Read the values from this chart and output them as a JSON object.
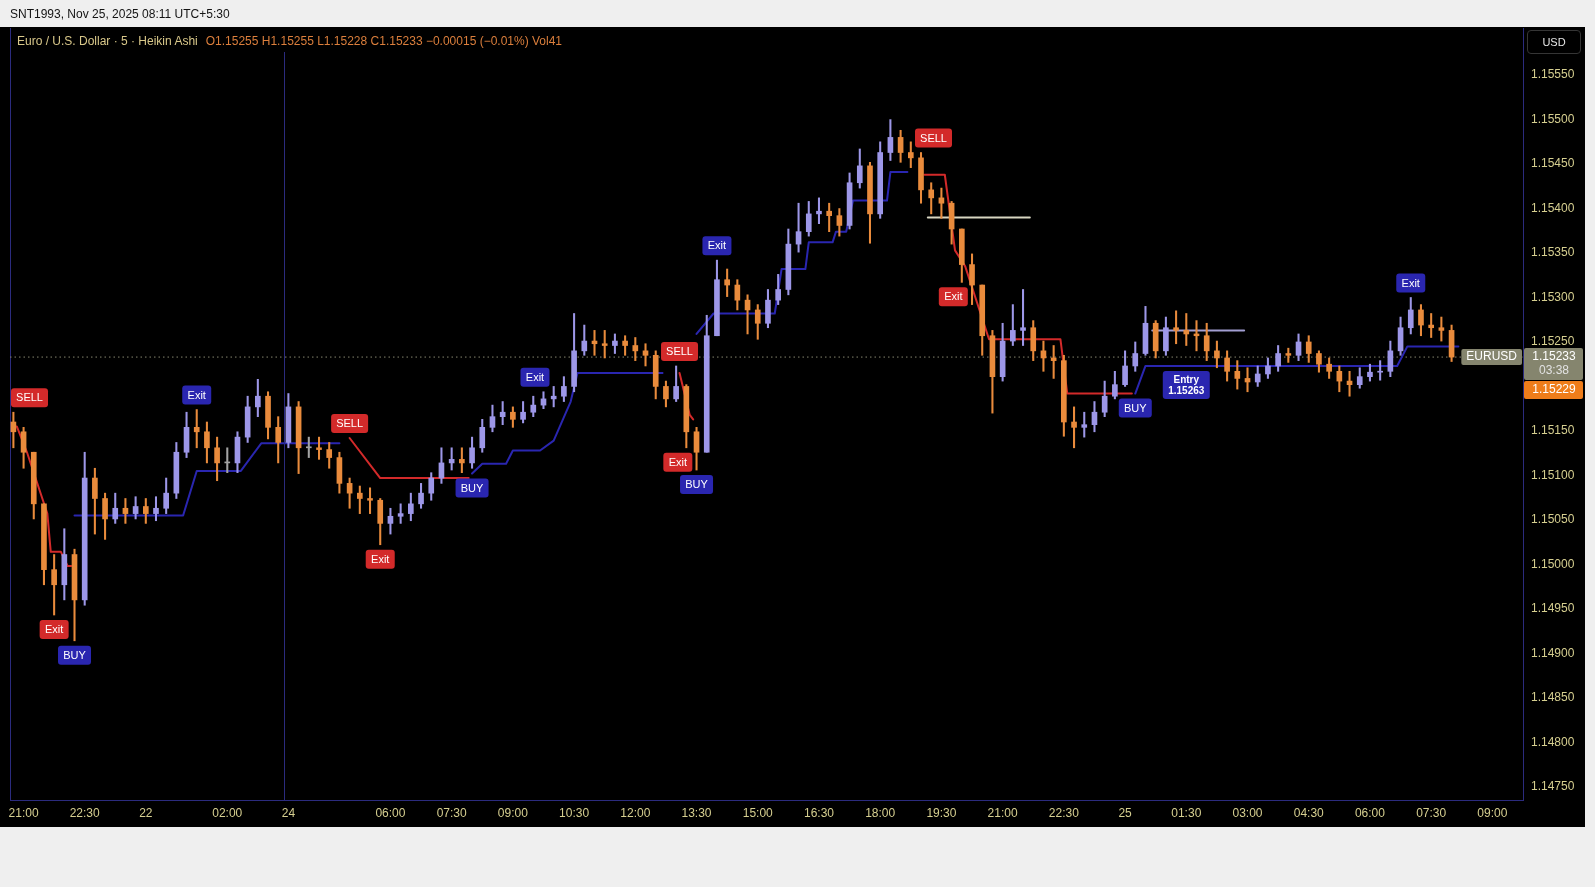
{
  "chart_data": [
    {
      "type": "candlestick",
      "title": "Euro / U.S. Dollar · 5 · Heikin Ashi",
      "x": [
        "2025-11-21T20:45",
        "2025-11-21T21:00",
        "2025-11-21T21:15",
        "2025-11-21T21:30",
        "2025-11-21T21:45",
        "2025-11-21T22:00",
        "2025-11-21T22:15",
        "2025-11-21T22:30",
        "2025-11-21T22:45",
        "2025-11-21T23:00",
        "2025-11-21T23:15",
        "2025-11-21T23:30",
        "2025-11-21T23:45",
        "2025-11-22T00:00",
        "2025-11-22T00:15",
        "2025-11-22T00:30",
        "2025-11-22T00:45",
        "2025-11-22T01:00",
        "2025-11-22T01:15",
        "2025-11-22T01:30",
        "2025-11-22T01:45",
        "2025-11-22T02:00",
        "2025-11-22T02:15",
        "2025-11-22T02:30",
        "2025-11-22T02:45",
        "2025-11-22T03:00",
        "2025-11-22T03:15"
      ],
      "ohlc": [
        [
          1.1516,
          1.15171,
          1.15131,
          1.15149
        ],
        [
          1.15149,
          1.15154,
          1.15108,
          1.15126
        ],
        [
          1.15126,
          1.15126,
          1.15051,
          1.15068
        ],
        [
          1.15068,
          1.15068,
          1.14977,
          1.14994
        ],
        [
          1.14994,
          1.15011,
          1.14943,
          1.14977
        ],
        [
          1.14977,
          1.1504,
          1.1496,
          1.15011
        ],
        [
          1.15011,
          1.15017,
          1.14914,
          1.1496
        ],
        [
          1.1496,
          1.15126,
          1.14954,
          1.15097
        ],
        [
          1.15097,
          1.15108,
          1.15034,
          1.15074
        ],
        [
          1.15074,
          1.1508,
          1.15028,
          1.15051
        ],
        [
          1.15051,
          1.1508,
          1.15046,
          1.15063
        ],
        [
          1.15063,
          1.15074,
          1.15046,
          1.15057
        ],
        [
          1.15057,
          1.15076,
          1.15051,
          1.15065
        ],
        [
          1.15065,
          1.15074,
          1.15046,
          1.15057
        ],
        [
          1.15057,
          1.15076,
          1.15049,
          1.15063
        ],
        [
          1.15063,
          1.15097,
          1.15057,
          1.1508
        ],
        [
          1.1508,
          1.15137,
          1.15074,
          1.15126
        ],
        [
          1.15126,
          1.15171,
          1.1512,
          1.15154
        ],
        [
          1.15154,
          1.15174,
          1.15131,
          1.15149
        ],
        [
          1.15149,
          1.1516,
          1.15114,
          1.15131
        ],
        [
          1.15131,
          1.15143,
          1.15094,
          1.15114
        ],
        [
          1.15114,
          1.15131,
          1.15103,
          1.15114
        ],
        [
          1.15114,
          1.15149,
          1.15103,
          1.15143
        ],
        [
          1.15143,
          1.15189,
          1.15137,
          1.15177
        ],
        [
          1.15177,
          1.15208,
          1.15166,
          1.15189
        ],
        [
          1.15189,
          1.15194,
          1.15141,
          1.15154
        ],
        [
          1.15154,
          1.15166,
          1.15114,
          1.15137
        ]
      ],
      "colors": [
        "#e98b3c",
        "#e98b3c",
        "#e98b3c",
        "#e98b3c",
        "#e98b3c",
        "#9d97e8",
        "#e98b3c",
        "#9d97e8",
        "#e98b3c",
        "#e98b3c",
        "#9d97e8",
        "#e98b3c",
        "#9d97e8",
        "#e98b3c",
        "#9d97e8",
        "#9d97e8",
        "#9d97e8",
        "#9d97e8",
        "#e98b3c",
        "#e98b3c",
        "#e98b3c",
        "#a3a3a3",
        "#9d97e8",
        "#9d97e8",
        "#9d97e8",
        "#e98b3c",
        "#e98b3c"
      ],
      "series": [
        {
          "type": "line",
          "color": "#d32a2a",
          "x": [
            "2025-11-21T20:50",
            "2025-11-21T21:05",
            "2025-11-21T21:35",
            "2025-11-21T21:40",
            "2025-11-21T21:55",
            "2025-11-21T22:05",
            "2025-11-21T22:10"
          ],
          "values": [
            1.15155,
            1.15126,
            1.15057,
            1.15014,
            1.15014,
            1.14998,
            1.14998
          ]
        },
        {
          "type": "line",
          "color": "#2a26b0",
          "x": [
            "2025-11-21T22:15",
            "2025-11-22T00:55",
            "2025-11-22T01:15",
            "2025-11-22T02:20",
            "2025-11-22T02:50",
            "2025-11-22T03:25"
          ],
          "values": [
            1.15055,
            1.15055,
            1.15105,
            1.15105,
            1.15136,
            1.15136
          ]
        }
      ],
      "xlim": [
        "2025-11-21T20:40",
        "2025-11-22T03:25"
      ],
      "xticks": [
        {
          "value": "2025-11-21T21:00",
          "label": "21:00"
        },
        {
          "value": "2025-11-21T22:30",
          "label": "22:30"
        },
        {
          "value": "2025-11-22T00:00",
          "label": "22"
        },
        {
          "value": "2025-11-22T02:00",
          "label": "02:00"
        }
      ],
      "ylim": [
        1.14735,
        1.15603
      ],
      "tick_labels": "x",
      "ref_lines": [
        {
          "axis": "y",
          "value": 1.15233,
          "line_style": "dotted",
          "color": "#85856e"
        }
      ],
      "annotations": [
        "SNT1993, Nov 25, 2025 08:11 UTC+5:30",
        {
          "text": "SELL",
          "x": "2025-11-21T20:45",
          "y": 1.15171
        },
        {
          "text": "Exit",
          "x": "2025-11-21T21:45",
          "y": 1.14943
        },
        {
          "text": "BUY",
          "x": "2025-11-21T22:15",
          "y": 1.14914
        },
        {
          "text": "Exit",
          "x": "2025-11-22T01:15",
          "y": 1.15174
        }
      ]
    },
    {
      "type": "candlestick",
      "subtitle": "O1.15255 H1.15255 L1.15228 C1.15233 −0.00015 (−0.01%) Vol41",
      "ylabel": "USD",
      "x": [
        "2025-11-24T03:30",
        "2025-11-24T03:45",
        "2025-11-24T04:00",
        "2025-11-24T04:15",
        "2025-11-24T04:30",
        "2025-11-24T04:45",
        "2025-11-24T05:00",
        "2025-11-24T05:15",
        "2025-11-24T05:30",
        "2025-11-24T05:45",
        "2025-11-24T06:00",
        "2025-11-24T06:15",
        "2025-11-24T06:30",
        "2025-11-24T06:45",
        "2025-11-24T07:00",
        "2025-11-24T07:15",
        "2025-11-24T07:30",
        "2025-11-24T07:45",
        "2025-11-24T08:00",
        "2025-11-24T08:15",
        "2025-11-24T08:30",
        "2025-11-24T08:45",
        "2025-11-24T09:00",
        "2025-11-24T09:15",
        "2025-11-24T09:30",
        "2025-11-24T09:45",
        "2025-11-24T10:00",
        "2025-11-24T10:15",
        "2025-11-24T10:30",
        "2025-11-24T10:45",
        "2025-11-24T11:00",
        "2025-11-24T11:15",
        "2025-11-24T11:30",
        "2025-11-24T11:45",
        "2025-11-24T12:00",
        "2025-11-24T12:15",
        "2025-11-24T12:30",
        "2025-11-24T12:45",
        "2025-11-24T13:00",
        "2025-11-24T13:15",
        "2025-11-24T13:30",
        "2025-11-24T13:45",
        "2025-11-24T14:00",
        "2025-11-24T14:15",
        "2025-11-24T14:30",
        "2025-11-24T14:45",
        "2025-11-24T15:00",
        "2025-11-24T15:15",
        "2025-11-24T15:30",
        "2025-11-24T15:45",
        "2025-11-24T16:00",
        "2025-11-24T16:15",
        "2025-11-24T16:30",
        "2025-11-24T16:45",
        "2025-11-24T17:00",
        "2025-11-24T17:15",
        "2025-11-24T17:30",
        "2025-11-24T17:45",
        "2025-11-24T18:00",
        "2025-11-24T18:15",
        "2025-11-24T18:30",
        "2025-11-24T18:45",
        "2025-11-24T19:00",
        "2025-11-24T19:15",
        "2025-11-24T19:30",
        "2025-11-24T19:45",
        "2025-11-24T20:00",
        "2025-11-24T20:15",
        "2025-11-24T20:30",
        "2025-11-24T20:45",
        "2025-11-24T21:00",
        "2025-11-24T21:15",
        "2025-11-24T21:30",
        "2025-11-24T21:45",
        "2025-11-24T22:00",
        "2025-11-24T22:15",
        "2025-11-24T22:30",
        "2025-11-24T22:45",
        "2025-11-24T23:00",
        "2025-11-24T23:15",
        "2025-11-24T23:30",
        "2025-11-24T23:45",
        "2025-11-25T00:00",
        "2025-11-25T00:15",
        "2025-11-25T00:30",
        "2025-11-25T00:45",
        "2025-11-25T01:00",
        "2025-11-25T01:15",
        "2025-11-25T01:30",
        "2025-11-25T01:45",
        "2025-11-25T02:00",
        "2025-11-25T02:15",
        "2025-11-25T02:30",
        "2025-11-25T02:45",
        "2025-11-25T03:00",
        "2025-11-25T03:15",
        "2025-11-25T03:30",
        "2025-11-25T03:45",
        "2025-11-25T04:00",
        "2025-11-25T04:15",
        "2025-11-25T04:30",
        "2025-11-25T04:45",
        "2025-11-25T05:00",
        "2025-11-25T05:15",
        "2025-11-25T05:30",
        "2025-11-25T05:45",
        "2025-11-25T06:00",
        "2025-11-25T06:15",
        "2025-11-25T06:30",
        "2025-11-25T06:45",
        "2025-11-25T07:00",
        "2025-11-25T07:15",
        "2025-11-25T07:30",
        "2025-11-25T07:45",
        "2025-11-25T08:00"
      ],
      "ohlc": [
        [
          1.15137,
          1.15192,
          1.15131,
          1.15177
        ],
        [
          1.15177,
          1.15183,
          1.15102,
          1.15131
        ],
        [
          1.15131,
          1.15143,
          1.1512,
          1.15131
        ],
        [
          1.15131,
          1.15143,
          1.15118,
          1.15129
        ],
        [
          1.15129,
          1.15137,
          1.15108,
          1.1512
        ],
        [
          1.1512,
          1.15126,
          1.1508,
          1.15091
        ],
        [
          1.15091,
          1.15097,
          1.15063,
          1.1508
        ],
        [
          1.1508,
          1.15088,
          1.15057,
          1.15074
        ],
        [
          1.15074,
          1.15086,
          1.15057,
          1.15072
        ],
        [
          1.15072,
          1.15074,
          1.15022,
          1.15046
        ],
        [
          1.15046,
          1.15063,
          1.15034,
          1.15054
        ],
        [
          1.15054,
          1.15068,
          1.15046,
          1.15057
        ],
        [
          1.15057,
          1.1508,
          1.15049,
          1.15068
        ],
        [
          1.15068,
          1.15091,
          1.15063,
          1.1508
        ],
        [
          1.1508,
          1.15103,
          1.15072,
          1.15097
        ],
        [
          1.15097,
          1.15131,
          1.15091,
          1.15114
        ],
        [
          1.15114,
          1.15131,
          1.15106,
          1.15118
        ],
        [
          1.15118,
          1.15131,
          1.15103,
          1.15114
        ],
        [
          1.15114,
          1.15143,
          1.15108,
          1.15131
        ],
        [
          1.15131,
          1.15163,
          1.15126,
          1.15154
        ],
        [
          1.15154,
          1.15179,
          1.15149,
          1.15166
        ],
        [
          1.15166,
          1.15183,
          1.15157,
          1.15171
        ],
        [
          1.15171,
          1.15177,
          1.15154,
          1.15163
        ],
        [
          1.15163,
          1.15183,
          1.15159,
          1.15171
        ],
        [
          1.15171,
          1.15189,
          1.15166,
          1.15179
        ],
        [
          1.15179,
          1.15194,
          1.15175,
          1.15186
        ],
        [
          1.15186,
          1.152,
          1.15177,
          1.15189
        ],
        [
          1.15189,
          1.15211,
          1.15183,
          1.152
        ],
        [
          1.152,
          1.15282,
          1.15194,
          1.1524
        ],
        [
          1.1524,
          1.15269,
          1.15235,
          1.15251
        ],
        [
          1.15251,
          1.15263,
          1.15235,
          1.15248
        ],
        [
          1.15248,
          1.15263,
          1.15232,
          1.15246
        ],
        [
          1.15246,
          1.15259,
          1.15237,
          1.15251
        ],
        [
          1.15251,
          1.15257,
          1.15235,
          1.15246
        ],
        [
          1.15246,
          1.15255,
          1.15229,
          1.1524
        ],
        [
          1.1524,
          1.15248,
          1.15223,
          1.15235
        ],
        [
          1.15235,
          1.1524,
          1.15186,
          1.152
        ],
        [
          1.152,
          1.15206,
          1.15177,
          1.15186
        ],
        [
          1.15186,
          1.15223,
          1.15183,
          1.152
        ],
        [
          1.152,
          1.15202,
          1.15131,
          1.15149
        ],
        [
          1.15149,
          1.15154,
          1.15106,
          1.15126
        ],
        [
          1.15126,
          1.1528,
          1.15126,
          1.15257
        ],
        [
          1.15257,
          1.15342,
          1.15257,
          1.1532
        ],
        [
          1.1532,
          1.15332,
          1.15301,
          1.15314
        ],
        [
          1.15314,
          1.1532,
          1.15286,
          1.15297
        ],
        [
          1.15297,
          1.15303,
          1.15259,
          1.15286
        ],
        [
          1.15286,
          1.15292,
          1.15253,
          1.15271
        ],
        [
          1.15271,
          1.15309,
          1.15266,
          1.15297
        ],
        [
          1.15297,
          1.15326,
          1.15292,
          1.15309
        ],
        [
          1.15309,
          1.15377,
          1.15303,
          1.1536
        ],
        [
          1.1536,
          1.15406,
          1.15351,
          1.15374
        ],
        [
          1.15374,
          1.15408,
          1.15369,
          1.15394
        ],
        [
          1.15394,
          1.15412,
          1.15383,
          1.15397
        ],
        [
          1.15397,
          1.15406,
          1.15374,
          1.15392
        ],
        [
          1.15392,
          1.154,
          1.15369,
          1.15381
        ],
        [
          1.15381,
          1.1544,
          1.15377,
          1.15429
        ],
        [
          1.15429,
          1.15467,
          1.15423,
          1.15448
        ],
        [
          1.15448,
          1.15452,
          1.15361,
          1.15394
        ],
        [
          1.15394,
          1.15475,
          1.15389,
          1.15463
        ],
        [
          1.15463,
          1.155,
          1.15454,
          1.1548
        ],
        [
          1.1548,
          1.15488,
          1.15452,
          1.15463
        ],
        [
          1.15463,
          1.15475,
          1.15446,
          1.15457
        ],
        [
          1.15457,
          1.15463,
          1.15406,
          1.15421
        ],
        [
          1.15421,
          1.15429,
          1.15394,
          1.15412
        ],
        [
          1.15412,
          1.15423,
          1.15389,
          1.15406
        ],
        [
          1.15406,
          1.15408,
          1.1536,
          1.15377
        ],
        [
          1.15377,
          1.15377,
          1.15317,
          1.15337
        ],
        [
          1.15337,
          1.15349,
          1.15292,
          1.15314
        ],
        [
          1.15314,
          1.15314,
          1.15235,
          1.15257
        ],
        [
          1.15257,
          1.15263,
          1.1517,
          1.15211
        ],
        [
          1.15211,
          1.15271,
          1.15206,
          1.15251
        ],
        [
          1.15251,
          1.15292,
          1.15246,
          1.15263
        ],
        [
          1.15263,
          1.15309,
          1.15246,
          1.15266
        ],
        [
          1.15266,
          1.15274,
          1.15229,
          1.1524
        ],
        [
          1.1524,
          1.15251,
          1.15217,
          1.15232
        ],
        [
          1.15232,
          1.15246,
          1.15209,
          1.15229
        ],
        [
          1.15229,
          1.15235,
          1.15144,
          1.1516
        ],
        [
          1.1516,
          1.15177,
          1.15131,
          1.15154
        ],
        [
          1.15154,
          1.15171,
          1.15143,
          1.15157
        ],
        [
          1.15157,
          1.15183,
          1.15149,
          1.15171
        ],
        [
          1.15171,
          1.15206,
          1.15166,
          1.15189
        ],
        [
          1.15189,
          1.15217,
          1.15186,
          1.15202
        ],
        [
          1.15202,
          1.1524,
          1.152,
          1.15223
        ],
        [
          1.15223,
          1.1525,
          1.15217,
          1.15237
        ],
        [
          1.15237,
          1.1529,
          1.15235,
          1.15271
        ],
        [
          1.15271,
          1.15274,
          1.15232,
          1.1524
        ],
        [
          1.1524,
          1.15278,
          1.15235,
          1.15266
        ],
        [
          1.15266,
          1.15285,
          1.15248,
          1.15263
        ],
        [
          1.15263,
          1.15282,
          1.15246,
          1.15259
        ],
        [
          1.15259,
          1.15274,
          1.1524,
          1.15257
        ],
        [
          1.15257,
          1.15271,
          1.15229,
          1.1524
        ],
        [
          1.1524,
          1.15251,
          1.15221,
          1.15232
        ],
        [
          1.15232,
          1.1524,
          1.15206,
          1.15217
        ],
        [
          1.15217,
          1.15229,
          1.15197,
          1.15209
        ],
        [
          1.15209,
          1.15221,
          1.15194,
          1.15205
        ],
        [
          1.15205,
          1.15223,
          1.152,
          1.15214
        ],
        [
          1.15214,
          1.15232,
          1.15209,
          1.15223
        ],
        [
          1.15223,
          1.15246,
          1.15217,
          1.15237
        ],
        [
          1.15237,
          1.15243,
          1.15227,
          1.15235
        ],
        [
          1.15235,
          1.15259,
          1.15229,
          1.1525
        ],
        [
          1.1525,
          1.15257,
          1.15227,
          1.15237
        ],
        [
          1.15237,
          1.1524,
          1.15216,
          1.15225
        ],
        [
          1.15225,
          1.15232,
          1.15209,
          1.15217
        ],
        [
          1.15217,
          1.15223,
          1.15194,
          1.15206
        ],
        [
          1.15206,
          1.15217,
          1.15189,
          1.15202
        ],
        [
          1.15202,
          1.15221,
          1.15198,
          1.15211
        ],
        [
          1.15211,
          1.15225,
          1.15206,
          1.15216
        ],
        [
          1.15216,
          1.15229,
          1.15207,
          1.15217
        ],
        [
          1.15217,
          1.15251,
          1.15211,
          1.1524
        ],
        [
          1.1524,
          1.15278,
          1.15235,
          1.15266
        ],
        [
          1.15266,
          1.153,
          1.15259,
          1.15286
        ],
        [
          1.15286,
          1.15292,
          1.15257,
          1.15269
        ],
        [
          1.15269,
          1.15282,
          1.15255,
          1.15266
        ],
        [
          1.15266,
          1.15278,
          1.15251,
          1.15263
        ],
        [
          1.15263,
          1.15269,
          1.15228,
          1.15233
        ]
      ],
      "colors": [
        "#9d97e8",
        "#e98b3c",
        "#a3a3a3",
        "#e98b3c",
        "#e98b3c",
        "#e98b3c",
        "#e98b3c",
        "#e98b3c",
        "#e98b3c",
        "#e98b3c",
        "#9d97e8",
        "#9d97e8",
        "#9d97e8",
        "#9d97e8",
        "#9d97e8",
        "#9d97e8",
        "#9d97e8",
        "#e98b3c",
        "#9d97e8",
        "#9d97e8",
        "#9d97e8",
        "#9d97e8",
        "#e98b3c",
        "#9d97e8",
        "#9d97e8",
        "#9d97e8",
        "#9d97e8",
        "#9d97e8",
        "#9d97e8",
        "#9d97e8",
        "#e98b3c",
        "#e98b3c",
        "#9d97e8",
        "#e98b3c",
        "#e98b3c",
        "#e98b3c",
        "#e98b3c",
        "#e98b3c",
        "#9d97e8",
        "#e98b3c",
        "#e98b3c",
        "#9d97e8",
        "#9d97e8",
        "#e98b3c",
        "#e98b3c",
        "#e98b3c",
        "#e98b3c",
        "#9d97e8",
        "#9d97e8",
        "#9d97e8",
        "#9d97e8",
        "#9d97e8",
        "#9d97e8",
        "#e98b3c",
        "#e98b3c",
        "#9d97e8",
        "#9d97e8",
        "#e98b3c",
        "#9d97e8",
        "#9d97e8",
        "#e98b3c",
        "#e98b3c",
        "#e98b3c",
        "#e98b3c",
        "#e98b3c",
        "#e98b3c",
        "#e98b3c",
        "#e98b3c",
        "#e98b3c",
        "#e98b3c",
        "#9d97e8",
        "#9d97e8",
        "#9d97e8",
        "#e98b3c",
        "#e98b3c",
        "#e98b3c",
        "#e98b3c",
        "#e98b3c",
        "#9d97e8",
        "#9d97e8",
        "#9d97e8",
        "#9d97e8",
        "#9d97e8",
        "#9d97e8",
        "#9d97e8",
        "#e98b3c",
        "#9d97e8",
        "#e98b3c",
        "#e98b3c",
        "#e98b3c",
        "#e98b3c",
        "#e98b3c",
        "#e98b3c",
        "#e98b3c",
        "#e98b3c",
        "#9d97e8",
        "#9d97e8",
        "#9d97e8",
        "#e98b3c",
        "#9d97e8",
        "#e98b3c",
        "#e98b3c",
        "#e98b3c",
        "#e98b3c",
        "#e98b3c",
        "#9d97e8",
        "#9d97e8",
        "#9d97e8",
        "#9d97e8",
        "#9d97e8",
        "#9d97e8",
        "#e98b3c",
        "#e98b3c",
        "#e98b3c",
        "#e98b3c"
      ],
      "series": [
        {
          "type": "line",
          "color": "#d32a2a",
          "x": [
            "2025-11-24T05:00",
            "2025-11-24T05:45",
            "2025-11-24T07:55",
            "2025-11-24T08:00",
            "2025-11-24T13:05",
            "2025-11-24T13:20",
            "2025-11-24T13:25",
            "2025-11-24T13:28",
            "2025-11-24T19:05",
            "2025-11-24T19:35",
            "2025-11-24T19:50",
            "2025-11-24T20:05",
            "2025-11-24T20:40",
            "2025-11-24T22:25",
            "2025-11-24T22:35",
            "2025-11-25T00:10"
          ],
          "values": [
            1.15142,
            1.15097,
            1.15097,
            null,
            1.15215,
            1.15168,
            1.15163,
            null,
            1.15438,
            1.15438,
            1.15353,
            1.15335,
            1.15253,
            1.15253,
            1.15192,
            1.15192
          ]
        },
        {
          "type": "line",
          "color": "#2a26b0",
          "x": [
            "2025-11-24T03:25",
            "2025-11-24T04:45",
            "2025-11-24T04:50",
            "2025-11-24T08:00",
            "2025-11-24T08:15",
            "2025-11-24T08:50",
            "2025-11-24T09:00",
            "2025-11-24T09:40",
            "2025-11-24T10:00",
            "2025-11-24T10:25",
            "2025-11-24T10:35",
            "2025-11-24T12:40",
            "2025-11-24T12:50",
            "2025-11-24T13:30",
            "2025-11-24T13:55",
            "2025-11-24T15:25",
            "2025-11-24T15:35",
            "2025-11-24T16:10",
            "2025-11-24T16:15",
            "2025-11-24T16:50",
            "2025-11-24T16:55",
            "2025-11-24T17:10",
            "2025-11-24T17:20",
            "2025-11-24T18:10",
            "2025-11-24T18:15",
            "2025-11-24T18:40",
            "2025-11-24T18:55",
            "2025-11-25T00:15",
            "2025-11-25T00:30",
            "2025-11-25T06:40",
            "2025-11-25T06:55",
            "2025-11-25T08:10"
          ],
          "values": [
            1.15136,
            1.15136,
            null,
            1.15102,
            1.15113,
            1.15113,
            1.15128,
            1.15128,
            1.15139,
            1.15183,
            1.15215,
            1.15215,
            null,
            1.15259,
            1.15282,
            1.15282,
            1.15332,
            1.15332,
            1.15362,
            1.15362,
            1.15374,
            1.15374,
            1.15409,
            1.15409,
            1.15441,
            1.15441,
            null,
            1.15192,
            1.15223,
            1.15223,
            1.15245,
            1.15245
          ]
        },
        {
          "type": "line",
          "color": "#d8d6c2",
          "x": [
            "2025-11-24T19:10",
            "2025-11-24T21:40"
          ],
          "values": [
            1.1539,
            1.1539
          ]
        },
        {
          "type": "line",
          "color": "#a29ed2",
          "x": [
            "2025-11-25T00:40",
            "2025-11-25T02:55"
          ],
          "values": [
            1.15263,
            1.15263
          ]
        }
      ],
      "xlim": [
        "2025-11-24T03:25",
        "2025-11-25T09:45"
      ],
      "xticks": [
        {
          "value": "2025-11-24T03:30",
          "label": "24"
        },
        {
          "value": "2025-11-24T06:00",
          "label": "06:00"
        },
        {
          "value": "2025-11-24T07:30",
          "label": "07:30"
        },
        {
          "value": "2025-11-24T09:00",
          "label": "09:00"
        },
        {
          "value": "2025-11-24T10:30",
          "label": "10:30"
        },
        {
          "value": "2025-11-24T12:00",
          "label": "12:00"
        },
        {
          "value": "2025-11-24T13:30",
          "label": "13:30"
        },
        {
          "value": "2025-11-24T15:00",
          "label": "15:00"
        },
        {
          "value": "2025-11-24T16:30",
          "label": "16:30"
        },
        {
          "value": "2025-11-24T18:00",
          "label": "18:00"
        },
        {
          "value": "2025-11-24T19:30",
          "label": "19:30"
        },
        {
          "value": "2025-11-24T21:00",
          "label": "21:00"
        },
        {
          "value": "2025-11-24T22:30",
          "label": "22:30"
        },
        {
          "value": "2025-11-25T00:00",
          "label": "25"
        },
        {
          "value": "2025-11-25T01:30",
          "label": "01:30"
        },
        {
          "value": "2025-11-25T03:00",
          "label": "03:00"
        },
        {
          "value": "2025-11-25T04:30",
          "label": "04:30"
        },
        {
          "value": "2025-11-25T06:00",
          "label": "06:00"
        },
        {
          "value": "2025-11-25T07:30",
          "label": "07:30"
        },
        {
          "value": "2025-11-25T09:00",
          "label": "09:00"
        }
      ],
      "ylim": [
        1.14735,
        1.15603
      ],
      "yticks": [
        {
          "value": 1.1475,
          "label": "1.14750"
        },
        {
          "value": 1.148,
          "label": "1.14800"
        },
        {
          "value": 1.1485,
          "label": "1.14850"
        },
        {
          "value": 1.149,
          "label": "1.14900"
        },
        {
          "value": 1.1495,
          "label": "1.14950"
        },
        {
          "value": 1.15,
          "label": "1.15000"
        },
        {
          "value": 1.1505,
          "label": "1.15050"
        },
        {
          "value": 1.151,
          "label": "1.15100"
        },
        {
          "value": 1.1515,
          "label": "1.15150"
        },
        {
          "value": 1.1525,
          "label": "1.15250"
        },
        {
          "value": 1.153,
          "label": "1.15300"
        },
        {
          "value": 1.1535,
          "label": "1.15350"
        },
        {
          "value": 1.154,
          "label": "1.15400"
        },
        {
          "value": 1.1545,
          "label": "1.15450"
        },
        {
          "value": 1.155,
          "label": "1.15500"
        },
        {
          "value": 1.1555,
          "label": "1.15550"
        }
      ],
      "ref_lines": [
        {
          "axis": "y",
          "value": 1.15233,
          "label": "EURUSD",
          "line_style": "dotted",
          "color": "#85856e"
        }
      ],
      "annotations": [
        {
          "text": "SELL",
          "x": "2025-11-24T05:00",
          "y": 1.15142
        },
        {
          "text": "Exit",
          "x": "2025-11-24T05:45",
          "y": 1.15022
        },
        {
          "text": "BUY",
          "x": "2025-11-24T08:00",
          "y": 1.15102
        },
        {
          "text": "Exit",
          "x": "2025-11-24T09:45",
          "y": 1.15194
        },
        {
          "text": "SELL",
          "x": "2025-11-24T13:05",
          "y": 1.15215
        },
        {
          "text": "BUY",
          "x": "2025-11-24T13:30",
          "y": 1.15106
        },
        {
          "text": "Exit",
          "x": "2025-11-24T13:15",
          "y": 1.15131
        },
        {
          "text": "Exit",
          "x": "2025-11-24T14:00",
          "y": 1.15342
        },
        {
          "text": "SELL",
          "x": "2025-11-24T19:00",
          "y": 1.15463
        },
        {
          "text": "Exit",
          "x": "2025-11-24T20:00",
          "y": 1.15317
        },
        {
          "text": "BUY",
          "x": "2025-11-25T00:15",
          "y": 1.15192
        },
        {
          "text": "Entry 1.15263",
          "x": "2025-11-25T01:30",
          "y": 1.15223
        },
        {
          "text": "Exit",
          "x": "2025-11-25T07:00",
          "y": 1.153
        },
        "1.15233",
        "03:38",
        "1.15229"
      ]
    }
  ]
}
